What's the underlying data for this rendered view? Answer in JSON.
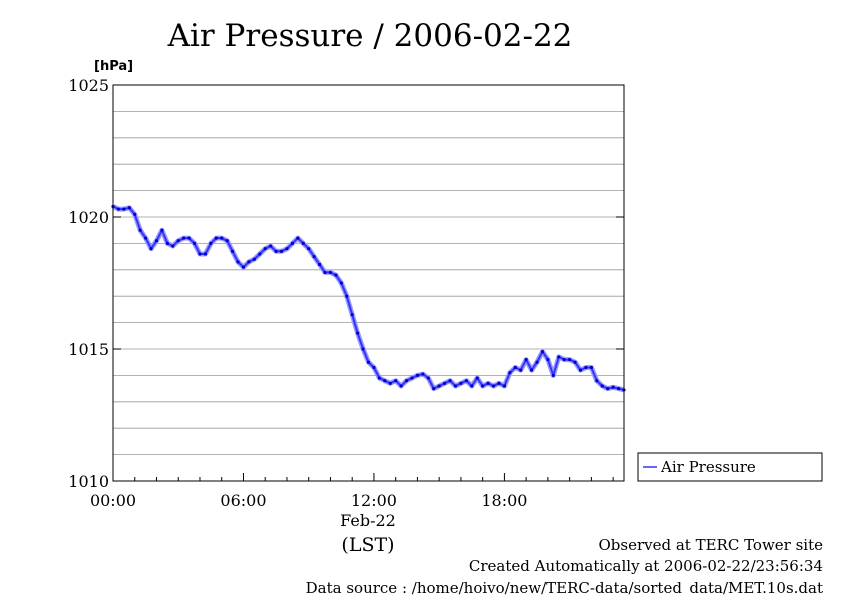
{
  "chart_data": {
    "type": "line",
    "title": "Air Pressure / 2006-02-22",
    "ylabel": "[hPa]",
    "ylim": [
      1010,
      1025
    ],
    "xlim": [
      0,
      23.5
    ],
    "y_ticks": [
      "1010",
      "1015",
      "1020",
      "1025"
    ],
    "x_ticks": [
      {
        "x": 0,
        "label": "00:00"
      },
      {
        "x": 6,
        "label": "06:00"
      },
      {
        "x": 12,
        "label": "12:00"
      },
      {
        "x": 18,
        "label": "18:00"
      }
    ],
    "date_label": "Feb-22",
    "time_zone_label": "(LST)",
    "grid": true,
    "legend_position": "right",
    "series": [
      {
        "name": "Air Pressure",
        "color": "#3333ff",
        "x": [
          0,
          0.25,
          0.5,
          0.75,
          1.0,
          1.25,
          1.5,
          1.75,
          2.0,
          2.25,
          2.5,
          2.75,
          3.0,
          3.25,
          3.5,
          3.75,
          4.0,
          4.25,
          4.5,
          4.75,
          5.0,
          5.25,
          5.5,
          5.75,
          6.0,
          6.25,
          6.5,
          6.75,
          7.0,
          7.25,
          7.5,
          7.75,
          8.0,
          8.25,
          8.5,
          8.75,
          9.0,
          9.25,
          9.5,
          9.75,
          10.0,
          10.25,
          10.5,
          10.75,
          11.0,
          11.25,
          11.5,
          11.75,
          12.0,
          12.25,
          12.5,
          12.75,
          13.0,
          13.25,
          13.5,
          13.75,
          14.0,
          14.25,
          14.5,
          14.75,
          15.0,
          15.25,
          15.5,
          15.75,
          16.0,
          16.25,
          16.5,
          16.75,
          17.0,
          17.25,
          17.5,
          17.75,
          18.0,
          18.25,
          18.5,
          18.75,
          19.0,
          19.25,
          19.5,
          19.75,
          20.0,
          20.25,
          20.5,
          20.75,
          21.0,
          21.25,
          21.5,
          21.75,
          22.0,
          22.25,
          22.5,
          22.75,
          23.0,
          23.25,
          23.5
        ],
        "values": [
          1020.4,
          1020.3,
          1020.3,
          1020.35,
          1020.1,
          1019.5,
          1019.2,
          1018.8,
          1019.1,
          1019.5,
          1019.0,
          1018.9,
          1019.1,
          1019.2,
          1019.2,
          1019.0,
          1018.6,
          1018.6,
          1019.0,
          1019.2,
          1019.2,
          1019.1,
          1018.7,
          1018.3,
          1018.1,
          1018.3,
          1018.4,
          1018.6,
          1018.8,
          1018.9,
          1018.7,
          1018.7,
          1018.8,
          1019.0,
          1019.2,
          1019.0,
          1018.8,
          1018.5,
          1018.2,
          1017.9,
          1017.9,
          1017.8,
          1017.5,
          1017.0,
          1016.3,
          1015.6,
          1015.0,
          1014.5,
          1014.3,
          1013.9,
          1013.8,
          1013.7,
          1013.8,
          1013.6,
          1013.8,
          1013.9,
          1014.0,
          1014.05,
          1013.9,
          1013.5,
          1013.6,
          1013.7,
          1013.8,
          1013.6,
          1013.7,
          1013.8,
          1013.6,
          1013.9,
          1013.6,
          1013.7,
          1013.6,
          1013.7,
          1013.6,
          1014.1,
          1014.3,
          1014.2,
          1014.6,
          1014.2,
          1014.5,
          1014.9,
          1014.6,
          1014.0,
          1014.7,
          1014.6,
          1014.6,
          1014.5,
          1014.2,
          1014.3,
          1014.3,
          1013.8,
          1013.6,
          1013.5,
          1013.55,
          1013.5,
          1013.45
        ]
      }
    ]
  },
  "legend": {
    "label": "Air Pressure"
  },
  "footer": {
    "line1": "Observed at TERC Tower site",
    "line2": "Created Automatically at 2006-02-22/23:56:34",
    "line3": "Data source : /home/hoivo/new/TERC-data/sorted_data/MET.10s.dat"
  }
}
